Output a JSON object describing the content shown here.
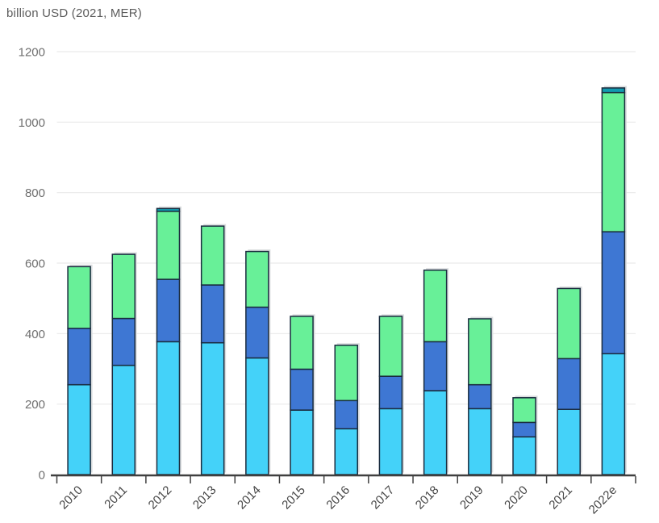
{
  "header": {
    "title": "billion USD (2021, MER)"
  },
  "chart_data": {
    "type": "bar",
    "stacked": true,
    "title": "billion USD (2021, MER)",
    "xlabel": "",
    "ylabel": "billion USD (2021, MER)",
    "categories": [
      "2010",
      "2011",
      "2012",
      "2013",
      "2014",
      "2015",
      "2016",
      "2017",
      "2018",
      "2019",
      "2020",
      "2021",
      "2022e"
    ],
    "series": [
      {
        "name": "light-blue-bottom",
        "color": "#44D2F9",
        "values": [
          255,
          310,
          377,
          374,
          331,
          183,
          130,
          187,
          238,
          187,
          107,
          185,
          343
        ]
      },
      {
        "name": "blue-middle",
        "color": "#3E77D3",
        "values": [
          160,
          133,
          177,
          164,
          144,
          116,
          80,
          92,
          139,
          68,
          41,
          144,
          346
        ]
      },
      {
        "name": "green-top",
        "color": "#68F098",
        "values": [
          175,
          182,
          193,
          167,
          158,
          150,
          157,
          170,
          203,
          187,
          70,
          199,
          395
        ]
      },
      {
        "name": "teal-cap",
        "color": "#119BB0",
        "values": [
          0,
          0,
          8,
          0,
          0,
          0,
          0,
          0,
          0,
          0,
          0,
          0,
          13
        ]
      }
    ],
    "ylim": [
      0,
      1200
    ],
    "yticks": [
      0,
      200,
      400,
      600,
      800,
      1000,
      1200
    ],
    "grid": true,
    "legend_position": "none",
    "colors": {
      "bar_outline": "#1A2C3F",
      "bar_shadow": "#D9DCDE",
      "axis": "#3F3F3F",
      "gridline": "#EAEAEA",
      "y_tick_label": "#6F6F6F",
      "x_tick_label": "#454545",
      "title": "#5C5C5C",
      "background": "#FFFFFF"
    }
  }
}
